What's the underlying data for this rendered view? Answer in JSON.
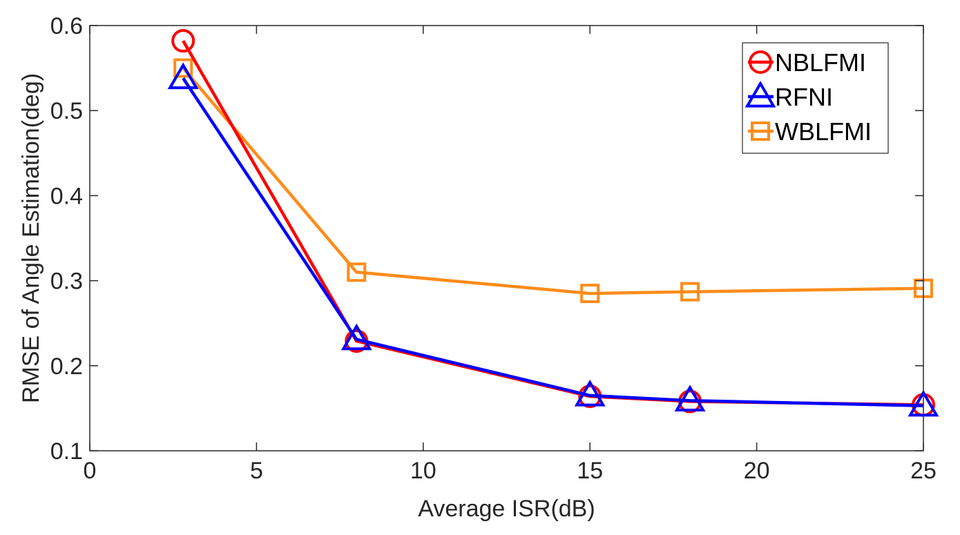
{
  "chart_data": {
    "type": "line",
    "title": "",
    "xlabel": "Average ISR(dB)",
    "ylabel": "RMSE of Angle Estimation(deg)",
    "xlim": [
      0,
      25
    ],
    "ylim": [
      0.1,
      0.6
    ],
    "xticks": [
      0,
      5,
      10,
      15,
      20,
      25
    ],
    "yticks": [
      0.1,
      0.2,
      0.3,
      0.4,
      0.5,
      0.6
    ],
    "xtick_labels": [
      "0",
      "5",
      "10",
      "15",
      "20",
      "25"
    ],
    "ytick_labels": [
      "0.1",
      "0.2",
      "0.3",
      "0.4",
      "0.5",
      "0.6"
    ],
    "grid": false,
    "legend_position": "top-right",
    "series": [
      {
        "name": "NBLFMI",
        "color": "#ff0000",
        "marker": "circle",
        "x": [
          2.8,
          8,
          15,
          18,
          25
        ],
        "y": [
          0.582,
          0.229,
          0.164,
          0.158,
          0.154
        ]
      },
      {
        "name": "RFNI",
        "color": "#0000ff",
        "marker": "triangle",
        "x": [
          2.8,
          8,
          15,
          18,
          25
        ],
        "y": [
          0.538,
          0.231,
          0.165,
          0.159,
          0.153
        ]
      },
      {
        "name": "WBLFMI",
        "color": "#ff8c1a",
        "marker": "square",
        "x": [
          2.8,
          8,
          15,
          18,
          25
        ],
        "y": [
          0.55,
          0.31,
          0.285,
          0.287,
          0.291
        ]
      }
    ]
  }
}
